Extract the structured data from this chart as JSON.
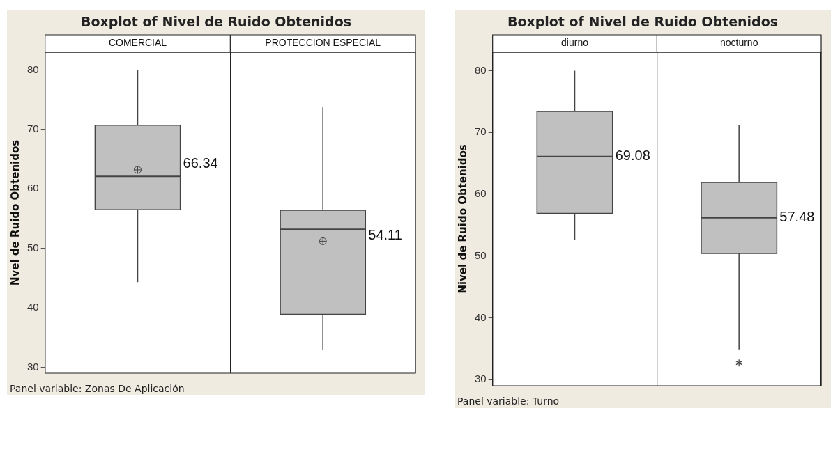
{
  "chart_data": [
    {
      "type": "box",
      "title": "Boxplot of Nivel de Ruido Obtenidos",
      "ylabel": "Nvel de Ruido Obtenidos",
      "categories": [
        "COMERCIAL",
        "PROTECCION ESPECIAL"
      ],
      "boxes": [
        {
          "low": 44.3,
          "q1": 56.5,
          "median": 62.1,
          "q3": 70.7,
          "high": 80,
          "mean": 63.2
        },
        {
          "low": 32.9,
          "q1": 38.9,
          "median": 53.2,
          "q3": 56.4,
          "high": 73.7,
          "mean": 51.2
        }
      ],
      "color": "#c0c0c0",
      "ylim": [
        29,
        83
      ],
      "yticks": [
        30,
        40,
        50,
        60,
        70,
        80
      ],
      "grid": false,
      "annotations": [
        "66.34",
        "54.11",
        "Panel variable: Zonas De Aplicación"
      ]
    },
    {
      "type": "box",
      "title": "Boxplot of Nivel de Ruido Obtenidos",
      "ylabel": "Nivel de Ruido Obtenidos",
      "categories": [
        "diurno",
        "nocturno"
      ],
      "boxes": [
        {
          "low": 52.6,
          "q1": 56.9,
          "median": 66.1,
          "q3": 73.4,
          "high": 80
        },
        {
          "low": 34.9,
          "q1": 50.4,
          "median": 56.2,
          "q3": 61.9,
          "high": 71.2,
          "outliers": [
            32.7
          ]
        }
      ],
      "color": "#c0c0c0",
      "ylim": [
        29,
        83
      ],
      "yticks": [
        30,
        40,
        50,
        60,
        70,
        80
      ],
      "grid": false,
      "annotations": [
        "69.08",
        "57.48",
        "Panel variable: Turno"
      ]
    }
  ]
}
